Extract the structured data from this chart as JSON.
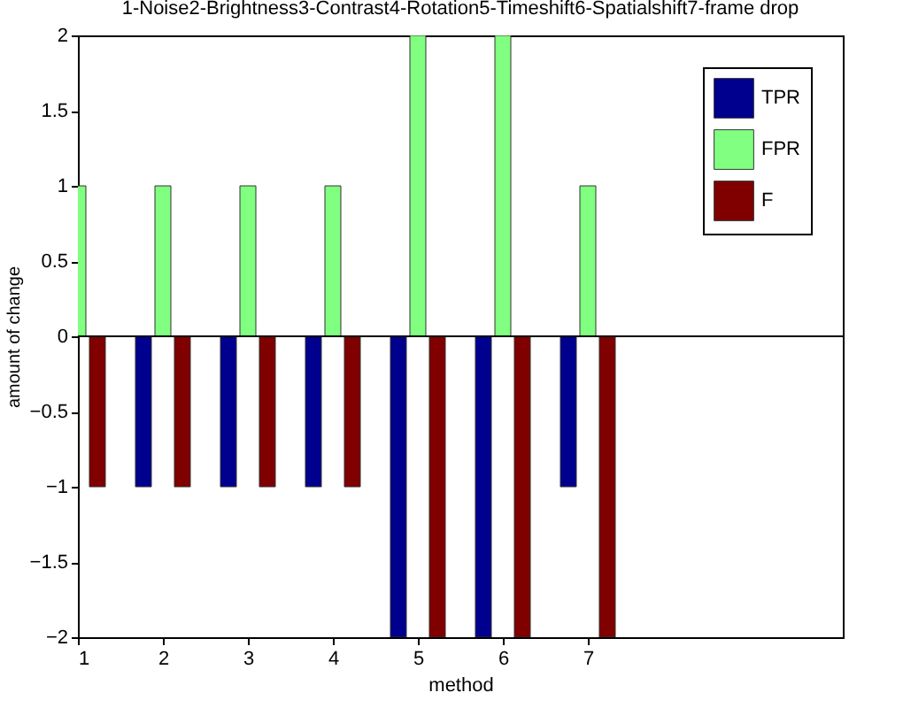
{
  "chart_data": {
    "type": "bar",
    "title": "1-Noise2-Brightness3-Contrast4-Rotation5-Timeshift6-Spatialshift7-frame drop",
    "xlabel": "method",
    "ylabel": "amount of change",
    "x": [
      1,
      2,
      3,
      4,
      5,
      6,
      7
    ],
    "series": [
      {
        "name": "TPR",
        "color": "#00008f",
        "values": [
          null,
          -1,
          -1,
          -1,
          -2,
          -2,
          -1
        ]
      },
      {
        "name": "FPR",
        "color": "#80ff80",
        "values": [
          1,
          1,
          1,
          1,
          2,
          2,
          1
        ]
      },
      {
        "name": "F",
        "color": "#800000",
        "values": [
          -1,
          -1,
          -1,
          -1,
          -2,
          -2,
          -2
        ]
      }
    ],
    "xlim": [
      1,
      10
    ],
    "xticks": [
      1,
      2,
      3,
      4,
      5,
      6,
      7
    ],
    "ylim": [
      -2,
      2
    ],
    "yticks": [
      -2,
      -1.5,
      -1,
      -0.5,
      0,
      0.5,
      1,
      1.5,
      2
    ],
    "ref_lines": [
      {
        "axis": "y",
        "value": 0
      }
    ],
    "legend": "top right",
    "grid": false
  }
}
